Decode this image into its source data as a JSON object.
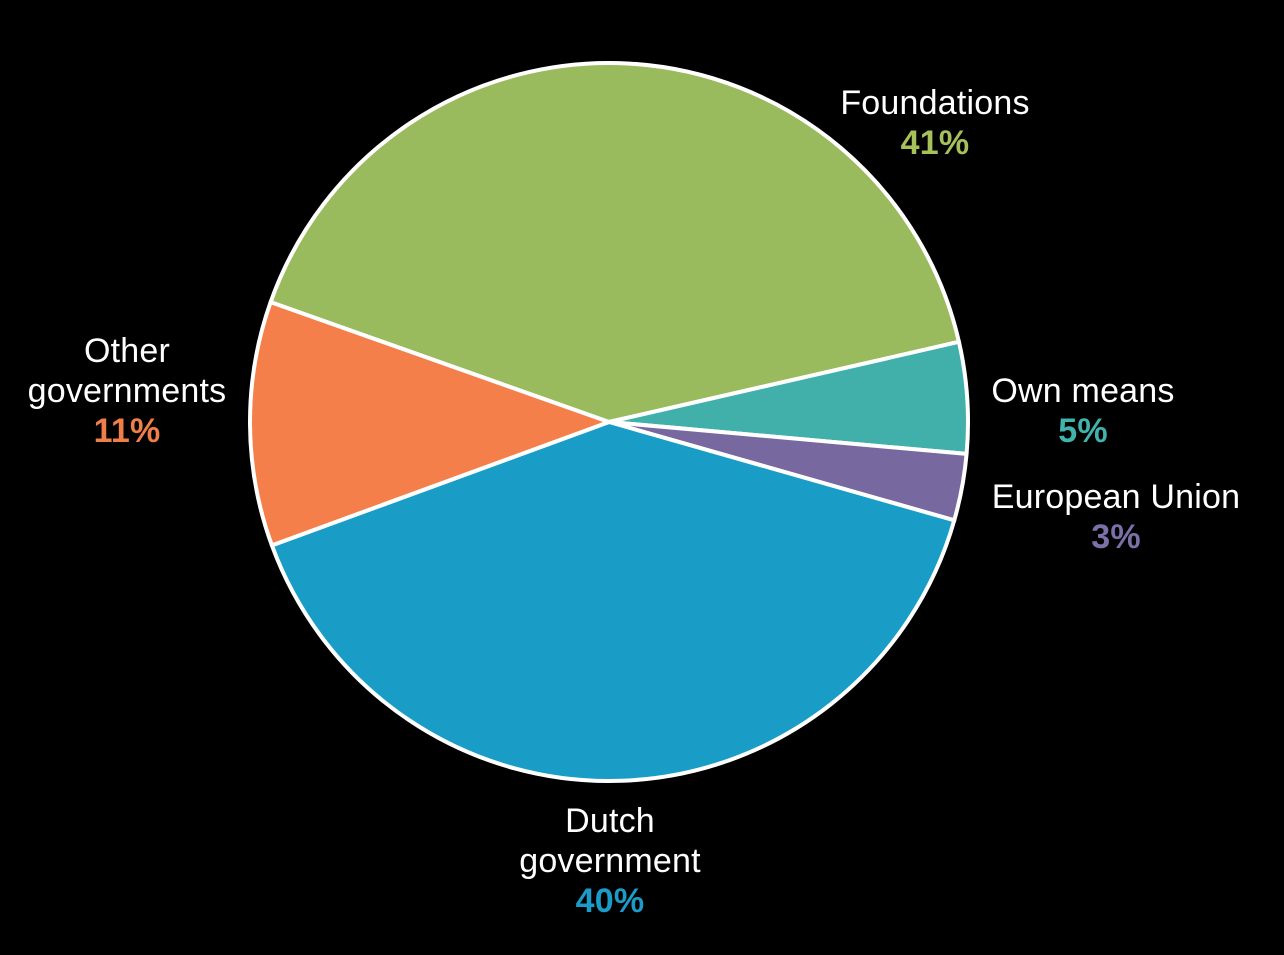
{
  "chart_data": {
    "type": "pie",
    "title": "",
    "slices": [
      {
        "label": "Foundations",
        "value": 41,
        "pct_label": "41%",
        "color": "#9aba5e",
        "pct_color": "#a6c05c"
      },
      {
        "label": "Own means",
        "value": 5,
        "pct_label": "5%",
        "color": "#41b0ab",
        "pct_color": "#3fb3ac"
      },
      {
        "label": "European Union",
        "value": 3,
        "pct_label": "3%",
        "color": "#77699f",
        "pct_color": "#7d70a8"
      },
      {
        "label": "Dutch government",
        "value": 40,
        "pct_label": "40%",
        "color": "#199dc6",
        "pct_color": "#1b9cc8"
      },
      {
        "label": "Other governments",
        "value": 11,
        "pct_label": "11%",
        "color": "#f47f4a",
        "pct_color": "#f07e48"
      }
    ],
    "layout": {
      "start_angle_deg": 160.5,
      "direction": "clockwise",
      "stroke_color": "#ffffff",
      "background": "#000000",
      "legend": "none",
      "labels": "outside"
    }
  }
}
